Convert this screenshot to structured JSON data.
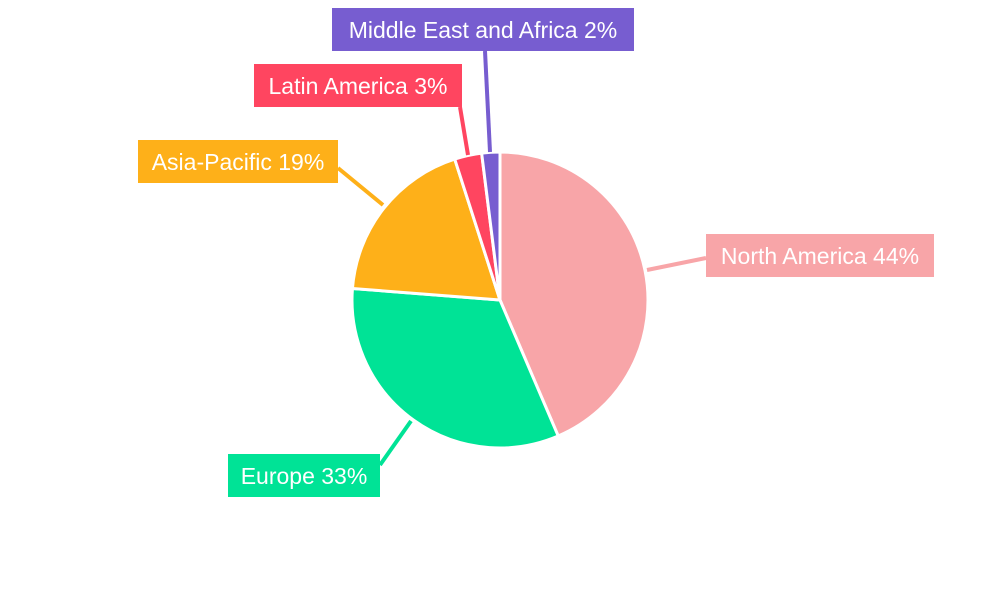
{
  "chart_data": {
    "type": "pie",
    "title": "",
    "start_angle": "top, clockwise",
    "legend": "none",
    "slices": [
      {
        "name": "North America",
        "value": 44,
        "label": "North America 44%",
        "color": "#f8a5a8"
      },
      {
        "name": "Europe",
        "value": 33,
        "label": "Europe 33%",
        "color": "#00e396"
      },
      {
        "name": "Asia-Pacific",
        "value": 19,
        "label": "Asia-Pacific 19%",
        "color": "#feb019"
      },
      {
        "name": "Latin America",
        "value": 3,
        "label": "Latin America 3%",
        "color": "#ff4560"
      },
      {
        "name": "Middle East and Africa",
        "value": 2,
        "label": "Middle East and Africa 2%",
        "color": "#775dd0"
      }
    ]
  }
}
